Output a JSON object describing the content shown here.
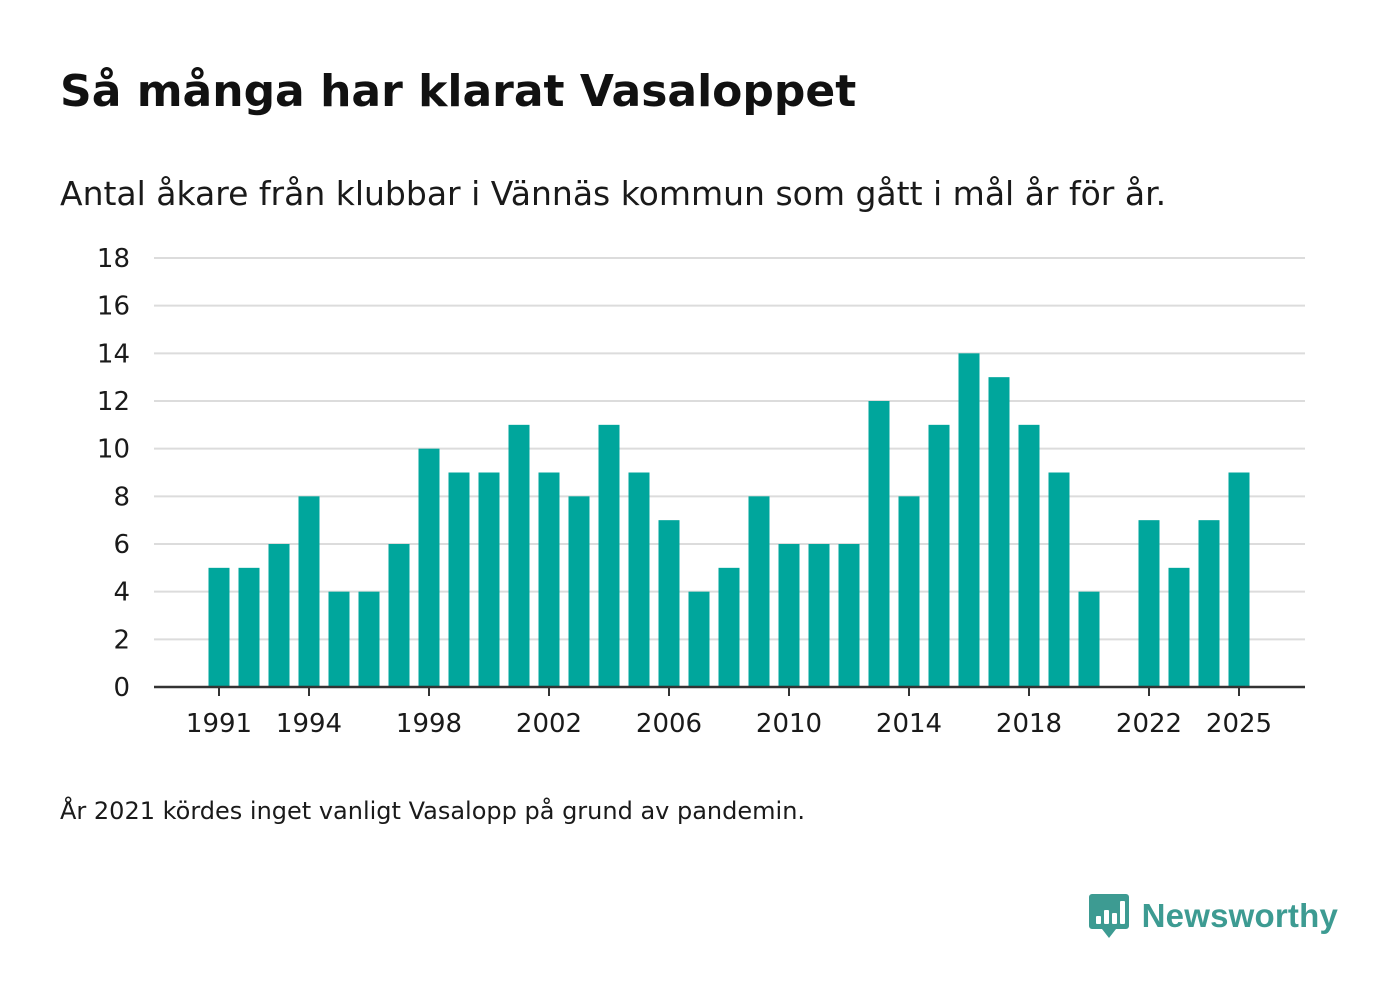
{
  "header": {
    "title": "Så många har klarat Vasaloppet",
    "subtitle": "Antal åkare från klubbar i Vännäs kommun som gått i mål år för år."
  },
  "footer": {
    "note": "År 2021 kördes inget vanligt Vasalopp på grund av pandemin.",
    "brand": "Newsworthy",
    "brand_icon": "bar-chart-speech-bubble-icon"
  },
  "colors": {
    "bar": "#00a69c",
    "grid": "#dcdcdc",
    "axis": "#333333",
    "brand": "#3d9b92"
  },
  "chart_data": {
    "type": "bar",
    "title": "Så många har klarat Vasaloppet",
    "subtitle": "Antal åkare från klubbar i Vännäs kommun som gått i mål år för år.",
    "xlabel": "",
    "ylabel": "",
    "ylim": [
      0,
      18
    ],
    "yticks": [
      0,
      2,
      4,
      6,
      8,
      10,
      12,
      14,
      16,
      18
    ],
    "grid": true,
    "x": [
      1991,
      1992,
      1993,
      1994,
      1995,
      1996,
      1997,
      1998,
      1999,
      2000,
      2001,
      2002,
      2003,
      2004,
      2005,
      2006,
      2007,
      2008,
      2009,
      2010,
      2011,
      2012,
      2013,
      2014,
      2015,
      2016,
      2017,
      2018,
      2019,
      2020,
      2021,
      2022,
      2023,
      2024,
      2025
    ],
    "values": [
      5,
      5,
      6,
      8,
      4,
      4,
      6,
      10,
      9,
      9,
      11,
      9,
      8,
      11,
      9,
      7,
      4,
      5,
      8,
      6,
      6,
      6,
      12,
      8,
      11,
      14,
      13,
      11,
      9,
      4,
      null,
      7,
      5,
      7,
      9
    ],
    "xtick_labels": [
      "1991",
      "1994",
      "1998",
      "2002",
      "2006",
      "2010",
      "2014",
      "2018",
      "2022",
      "2025"
    ]
  }
}
